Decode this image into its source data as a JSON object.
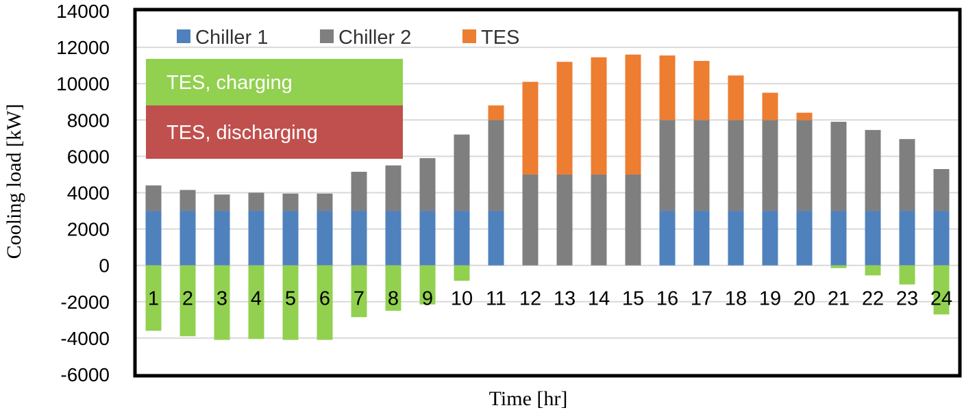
{
  "chart_data": {
    "type": "bar",
    "stacked": true,
    "categories": [
      "1",
      "2",
      "3",
      "4",
      "5",
      "6",
      "7",
      "8",
      "9",
      "10",
      "11",
      "12",
      "13",
      "14",
      "15",
      "16",
      "17",
      "18",
      "19",
      "20",
      "21",
      "22",
      "23",
      "24"
    ],
    "series": [
      {
        "name": "Chiller 1",
        "color": "#4f81bd",
        "values": [
          3000,
          3000,
          3000,
          3000,
          3000,
          3000,
          3000,
          3000,
          3000,
          3000,
          3000,
          0,
          0,
          0,
          0,
          3000,
          3000,
          3000,
          3000,
          3000,
          3000,
          3000,
          3000,
          3000
        ]
      },
      {
        "name": "Chiller 2",
        "color": "#7f7f7f",
        "values": [
          1400,
          1150,
          900,
          1000,
          950,
          950,
          2150,
          2500,
          2900,
          4200,
          5000,
          5000,
          5000,
          5000,
          5000,
          5000,
          5000,
          5000,
          5000,
          5000,
          4900,
          4450,
          3950,
          2300
        ]
      },
      {
        "name": "TES",
        "color": "#ed7d31",
        "values": [
          0,
          0,
          0,
          0,
          0,
          0,
          0,
          0,
          0,
          0,
          800,
          5100,
          6200,
          6450,
          6600,
          3550,
          3250,
          2450,
          1500,
          400,
          0,
          0,
          0,
          0
        ]
      },
      {
        "name": "TES, charging",
        "color": "#92d050",
        "values": [
          -3600,
          -3900,
          -4100,
          -4050,
          -4100,
          -4100,
          -2850,
          -2500,
          -2150,
          -850,
          0,
          0,
          0,
          0,
          0,
          0,
          0,
          0,
          0,
          0,
          -150,
          -550,
          -1050,
          -2700
        ]
      }
    ],
    "xlabel": "Time [hr]",
    "ylabel": "Cooling load [kW]",
    "ylim": [
      -6000,
      14000
    ],
    "yticks": [
      14000,
      12000,
      10000,
      8000,
      6000,
      4000,
      2000,
      0,
      -2000,
      -4000,
      -6000
    ],
    "grid": true,
    "legend": {
      "placement": "top-left",
      "items": [
        {
          "label": "Chiller 1",
          "color": "#4f81bd"
        },
        {
          "label": "Chiller 2",
          "color": "#7f7f7f"
        },
        {
          "label": "TES",
          "color": "#ed7d31"
        }
      ]
    },
    "annotations": [
      {
        "label": "TES, charging",
        "color": "#92d050"
      },
      {
        "label": "TES, discharging",
        "color": "#c0504d"
      }
    ]
  }
}
